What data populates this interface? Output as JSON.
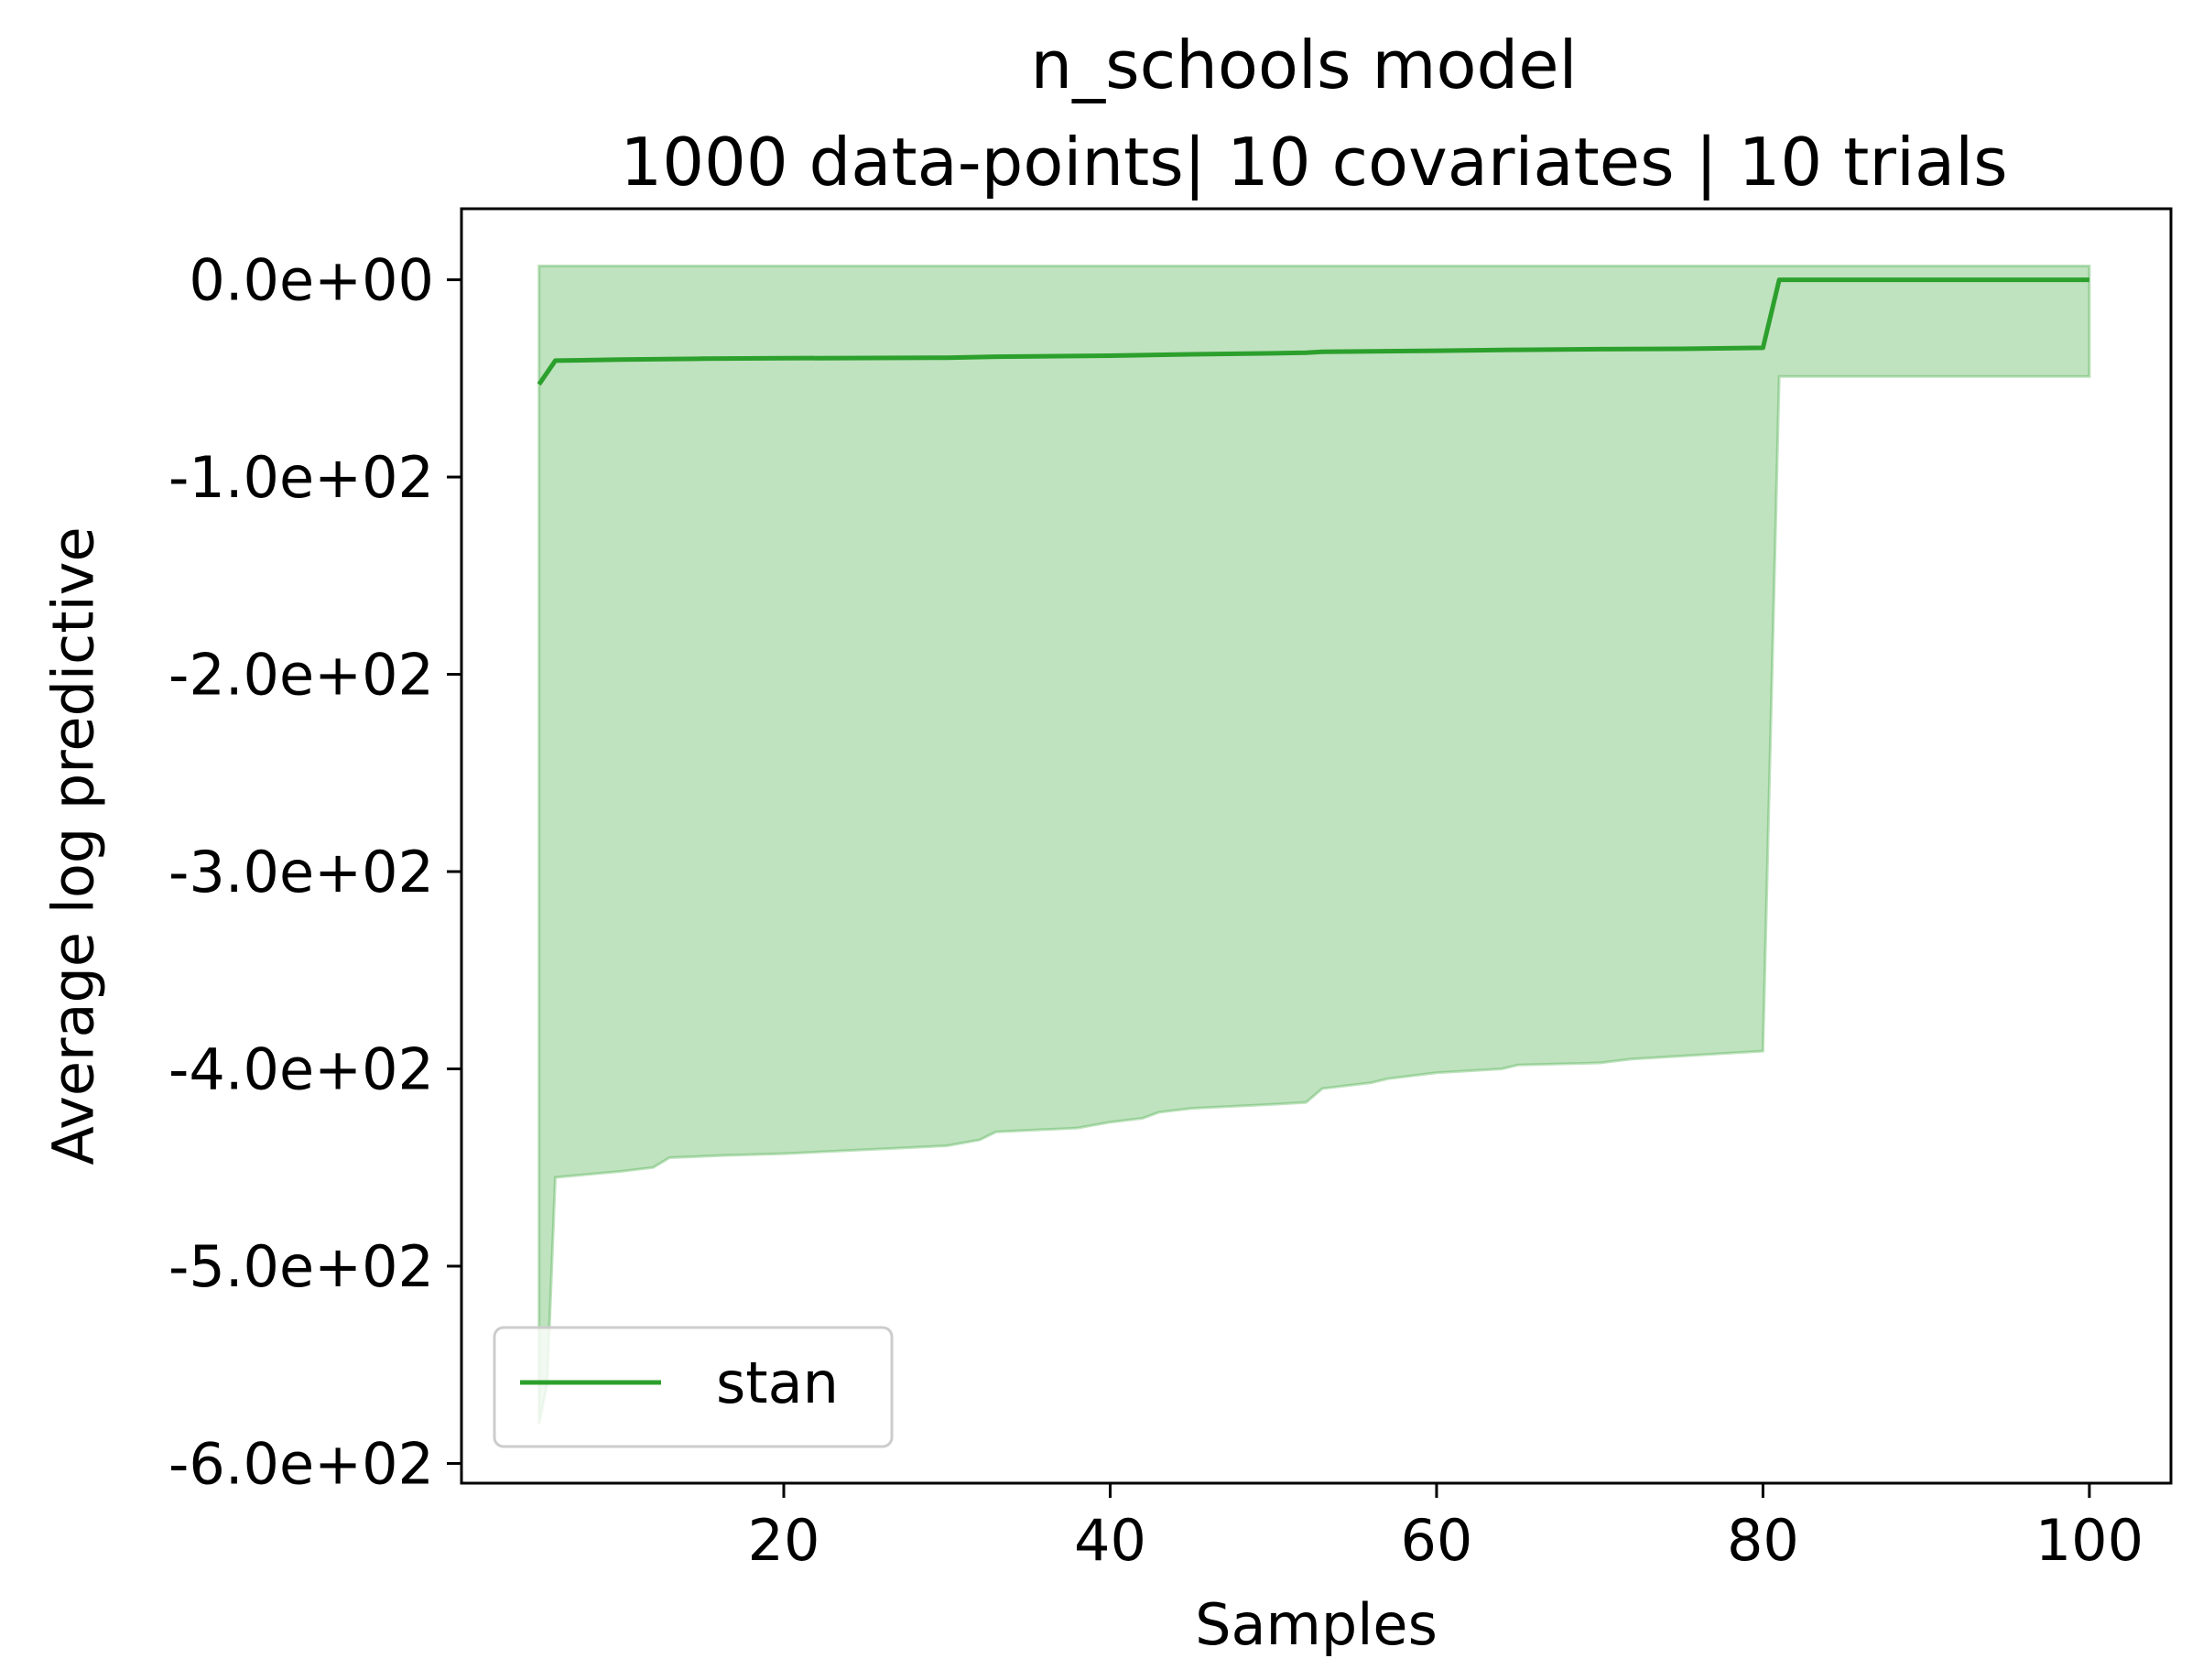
{
  "chart_data": {
    "type": "line",
    "title_line1": "n_schools model",
    "title_line2": "1000 data-points| 10 covariates | 10 trials",
    "xlabel": "Samples",
    "ylabel": "Average log predictive",
    "xlim": [
      0.25,
      105
    ],
    "ylim": [
      -610,
      36
    ],
    "xticks": [
      20,
      40,
      60,
      80,
      100
    ],
    "xtick_labels": [
      "20",
      "40",
      "60",
      "80",
      "100"
    ],
    "yticks": [
      0,
      -100,
      -200,
      -300,
      -400,
      -500,
      -600
    ],
    "ytick_labels": [
      "0.0e+00",
      "-1.0e+02",
      "-2.0e+02",
      "-3.0e+02",
      "-4.0e+02",
      "-5.0e+02",
      "-6.0e+02"
    ],
    "legend": {
      "location": "lower-left",
      "entries": [
        "stan"
      ]
    },
    "series": [
      {
        "name": "stan",
        "color": "#2ca02c",
        "x": [
          5,
          6,
          10,
          15,
          20,
          30,
          33,
          40,
          45,
          50,
          52,
          53,
          60,
          65,
          70,
          75,
          80,
          81,
          90,
          100
        ],
        "y": [
          -53,
          -41,
          -40.5,
          -40,
          -39.8,
          -39.5,
          -39,
          -38.5,
          -37.8,
          -37.3,
          -37,
          -36.5,
          -36,
          -35.5,
          -35.2,
          -35,
          -34.5,
          0,
          0,
          0
        ],
        "band": {
          "fill_color": "#2ca02c",
          "x": [
            5,
            5.5,
            6,
            10,
            12,
            13,
            16,
            20,
            30,
            32,
            33,
            38,
            40,
            42,
            43,
            45,
            50,
            52,
            53,
            56,
            57,
            58,
            60,
            64,
            65,
            70,
            72,
            80,
            81,
            90,
            100
          ],
          "upper": [
            7,
            7,
            7,
            7,
            7,
            7,
            7,
            7,
            7,
            7,
            7,
            7,
            7,
            7,
            7,
            7,
            7,
            7,
            7,
            7,
            7,
            7,
            7,
            7,
            7,
            7,
            7,
            7,
            7,
            7,
            7
          ],
          "lower": [
            -580,
            -560,
            -455,
            -452,
            -450,
            -445,
            -444,
            -443,
            -439,
            -436,
            -432,
            -430,
            -427,
            -425,
            -422,
            -420,
            -418,
            -417,
            -410,
            -407,
            -405,
            -404,
            -402,
            -400,
            -398,
            -397,
            -395,
            -391,
            -49,
            -49,
            -49
          ]
        }
      }
    ]
  }
}
